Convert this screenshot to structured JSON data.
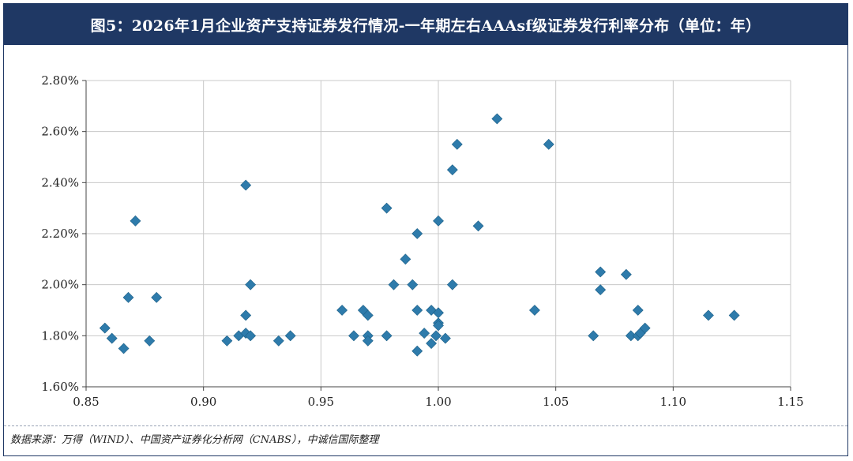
{
  "title": "图5：2026年1月企业资产支持证券发行情况-一年期左右AAAsf级证券发行利率分布（单位：年）",
  "source": "数据来源：万得（WIND）、中国资产证券化分析网（CNABS），中诚信国际整理",
  "colors": {
    "header_bg": "#1f3864",
    "marker": "#2e7bab",
    "grid": "#c8c8c8"
  },
  "chart_data": {
    "type": "scatter",
    "marker": "diamond",
    "xlim": [
      0.85,
      1.15
    ],
    "ylim": [
      1.6,
      2.8
    ],
    "x_ticks": [
      0.85,
      0.9,
      0.95,
      1.0,
      1.05,
      1.1,
      1.15
    ],
    "x_tick_labels": [
      "0.85",
      "0.90",
      "0.95",
      "1.00",
      "1.05",
      "1.10",
      "1.15"
    ],
    "y_ticks": [
      1.6,
      1.8,
      2.0,
      2.2,
      2.4,
      2.6,
      2.8
    ],
    "y_tick_labels": [
      "1.60%",
      "1.80%",
      "2.00%",
      "2.20%",
      "2.40%",
      "2.60%",
      "2.80%"
    ],
    "grid": true,
    "points": [
      {
        "x": 0.858,
        "y": 1.83
      },
      {
        "x": 0.861,
        "y": 1.79
      },
      {
        "x": 0.866,
        "y": 1.75
      },
      {
        "x": 0.868,
        "y": 1.95
      },
      {
        "x": 0.871,
        "y": 2.25
      },
      {
        "x": 0.877,
        "y": 1.78
      },
      {
        "x": 0.88,
        "y": 1.95
      },
      {
        "x": 0.91,
        "y": 1.78
      },
      {
        "x": 0.915,
        "y": 1.8
      },
      {
        "x": 0.918,
        "y": 1.81
      },
      {
        "x": 0.918,
        "y": 1.88
      },
      {
        "x": 0.918,
        "y": 2.39
      },
      {
        "x": 0.92,
        "y": 1.8
      },
      {
        "x": 0.92,
        "y": 2.0
      },
      {
        "x": 0.932,
        "y": 1.78
      },
      {
        "x": 0.937,
        "y": 1.8
      },
      {
        "x": 0.959,
        "y": 1.9
      },
      {
        "x": 0.964,
        "y": 1.8
      },
      {
        "x": 0.968,
        "y": 1.9
      },
      {
        "x": 0.97,
        "y": 1.88
      },
      {
        "x": 0.97,
        "y": 1.8
      },
      {
        "x": 0.97,
        "y": 1.78
      },
      {
        "x": 0.978,
        "y": 1.8
      },
      {
        "x": 0.978,
        "y": 2.3
      },
      {
        "x": 0.981,
        "y": 2.0
      },
      {
        "x": 0.986,
        "y": 2.1
      },
      {
        "x": 0.989,
        "y": 2.0
      },
      {
        "x": 0.991,
        "y": 2.2
      },
      {
        "x": 0.991,
        "y": 1.9
      },
      {
        "x": 0.991,
        "y": 1.74
      },
      {
        "x": 0.994,
        "y": 1.81
      },
      {
        "x": 0.997,
        "y": 1.9
      },
      {
        "x": 0.997,
        "y": 1.77
      },
      {
        "x": 0.999,
        "y": 1.8
      },
      {
        "x": 1.0,
        "y": 1.89
      },
      {
        "x": 1.0,
        "y": 1.85
      },
      {
        "x": 1.0,
        "y": 1.84
      },
      {
        "x": 1.0,
        "y": 2.25
      },
      {
        "x": 1.003,
        "y": 1.79
      },
      {
        "x": 1.006,
        "y": 2.0
      },
      {
        "x": 1.006,
        "y": 2.45
      },
      {
        "x": 1.008,
        "y": 2.55
      },
      {
        "x": 1.017,
        "y": 2.23
      },
      {
        "x": 1.025,
        "y": 2.65
      },
      {
        "x": 1.041,
        "y": 1.9
      },
      {
        "x": 1.047,
        "y": 2.55
      },
      {
        "x": 1.066,
        "y": 1.8
      },
      {
        "x": 1.069,
        "y": 2.05
      },
      {
        "x": 1.069,
        "y": 1.98
      },
      {
        "x": 1.08,
        "y": 2.04
      },
      {
        "x": 1.082,
        "y": 1.8
      },
      {
        "x": 1.085,
        "y": 1.8
      },
      {
        "x": 1.085,
        "y": 1.9
      },
      {
        "x": 1.086,
        "y": 1.81
      },
      {
        "x": 1.088,
        "y": 1.83
      },
      {
        "x": 1.115,
        "y": 1.88
      },
      {
        "x": 1.126,
        "y": 1.88
      }
    ]
  }
}
